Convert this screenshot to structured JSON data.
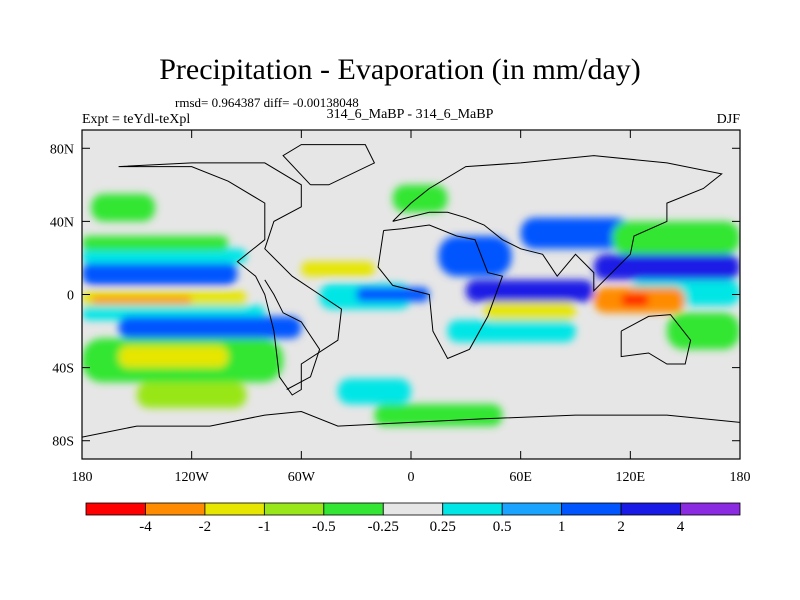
{
  "header": {
    "title": "Precipitation - Evaporation (in mm/day)",
    "stats": "rmsd= 0.964387 diff= -0.00138048",
    "left_string": "Expt = teYdl-teXpl",
    "center_string": "314_6_MaBP - 314_6_MaBP",
    "right_string": "DJF"
  },
  "chart_data": {
    "type": "heatmap",
    "title": "Precipitation - Evaporation (in mm/day)",
    "xlabel": "",
    "ylabel": "",
    "xlim": [
      -180,
      180
    ],
    "ylim": [
      -90,
      90
    ],
    "x_ticks": [
      {
        "value": -180,
        "label": "180"
      },
      {
        "value": -120,
        "label": "120W"
      },
      {
        "value": -60,
        "label": "60W"
      },
      {
        "value": 0,
        "label": "0"
      },
      {
        "value": 60,
        "label": "60E"
      },
      {
        "value": 120,
        "label": "120E"
      },
      {
        "value": 180,
        "label": "180"
      }
    ],
    "y_ticks": [
      {
        "value": 80,
        "label": "80N"
      },
      {
        "value": 40,
        "label": "40N"
      },
      {
        "value": 0,
        "label": "0"
      },
      {
        "value": -40,
        "label": "40S"
      },
      {
        "value": -80,
        "label": "80S"
      }
    ],
    "colorbar": {
      "levels": [
        "-4",
        "-2",
        "-1",
        "-0.5",
        "-0.25",
        "0.25",
        "0.5",
        "1",
        "2",
        "4"
      ],
      "colors": [
        "#ff0000",
        "#ff8c00",
        "#e6e600",
        "#99e619",
        "#33e633",
        "#e6e6e6",
        "#00e6e6",
        "#1aa3ff",
        "#0055ff",
        "#1a1ae6",
        "#8a2be2"
      ]
    },
    "background_color": "#e6e6e6",
    "regions": [
      {
        "name": "north-pacific-band",
        "lon": [
          -180,
          -95
        ],
        "lat": [
          5,
          18
        ],
        "color": "#0055ff"
      },
      {
        "name": "north-pacific-cyan",
        "lon": [
          -180,
          -90
        ],
        "lat": [
          17,
          25
        ],
        "color": "#00e6e6"
      },
      {
        "name": "north-pacific-green",
        "lon": [
          -180,
          -100
        ],
        "lat": [
          24,
          32
        ],
        "color": "#33e633"
      },
      {
        "name": "north-pacific-storm",
        "lon": [
          -175,
          -140
        ],
        "lat": [
          40,
          55
        ],
        "color": "#33e633"
      },
      {
        "name": "equatorial-pacific-yellow",
        "lon": [
          -180,
          -90
        ],
        "lat": [
          -7,
          2
        ],
        "color": "#e6e600"
      },
      {
        "name": "equatorial-pacific-red",
        "lon": [
          -175,
          -120
        ],
        "lat": [
          -5,
          -1
        ],
        "color": "#ff8c00"
      },
      {
        "name": "south-pacific-cyan",
        "lon": [
          -180,
          -80
        ],
        "lat": [
          -14,
          -6
        ],
        "color": "#00e6e6"
      },
      {
        "name": "south-pacific-band",
        "lon": [
          -160,
          -60
        ],
        "lat": [
          -24,
          -12
        ],
        "color": "#0055ff"
      },
      {
        "name": "south-pacific-green",
        "lon": [
          -180,
          -70
        ],
        "lat": [
          -48,
          -24
        ],
        "color": "#33e633"
      },
      {
        "name": "south-pacific-yellow",
        "lon": [
          -160,
          -100
        ],
        "lat": [
          -40,
          -28
        ],
        "color": "#e6e600"
      },
      {
        "name": "southern-ocean-green",
        "lon": [
          -150,
          -90
        ],
        "lat": [
          -62,
          -48
        ],
        "color": "#99e619"
      },
      {
        "name": "south-atlantic-cyan",
        "lon": [
          -40,
          0
        ],
        "lat": [
          -60,
          -46
        ],
        "color": "#00e6e6"
      },
      {
        "name": "south-atlantic-green",
        "lon": [
          -20,
          50
        ],
        "lat": [
          -72,
          -60
        ],
        "color": "#33e633"
      },
      {
        "name": "atlantic-north-yellow",
        "lon": [
          -60,
          -20
        ],
        "lat": [
          10,
          18
        ],
        "color": "#e6e600"
      },
      {
        "name": "atlantic-cyan",
        "lon": [
          -50,
          0
        ],
        "lat": [
          -8,
          6
        ],
        "color": "#00e6e6"
      },
      {
        "name": "atlantic-blue",
        "lon": [
          -30,
          10
        ],
        "lat": [
          -4,
          4
        ],
        "color": "#0055ff"
      },
      {
        "name": "africa-blue",
        "lon": [
          15,
          55
        ],
        "lat": [
          10,
          32
        ],
        "color": "#0055ff"
      },
      {
        "name": "indian-band",
        "lon": [
          30,
          100
        ],
        "lat": [
          -4,
          8
        ],
        "color": "#1a1ae6"
      },
      {
        "name": "indian-yellow",
        "lon": [
          40,
          90
        ],
        "lat": [
          -14,
          -4
        ],
        "color": "#e6e600"
      },
      {
        "name": "indian-cyan",
        "lon": [
          20,
          90
        ],
        "lat": [
          -26,
          -14
        ],
        "color": "#00e6e6"
      },
      {
        "name": "asia-blue",
        "lon": [
          60,
          120
        ],
        "lat": [
          25,
          42
        ],
        "color": "#0055ff"
      },
      {
        "name": "west-pacific-blue",
        "lon": [
          100,
          180
        ],
        "lat": [
          8,
          22
        ],
        "color": "#1a1ae6"
      },
      {
        "name": "west-pacific-green",
        "lon": [
          110,
          180
        ],
        "lat": [
          22,
          40
        ],
        "color": "#33e633"
      },
      {
        "name": "west-pacific-cyan",
        "lon": [
          120,
          180
        ],
        "lat": [
          -6,
          8
        ],
        "color": "#00e6e6"
      },
      {
        "name": "maritime-orange",
        "lon": [
          100,
          150
        ],
        "lat": [
          -10,
          4
        ],
        "color": "#ff8c00"
      },
      {
        "name": "maritime-red",
        "lon": [
          115,
          130
        ],
        "lat": [
          -6,
          0
        ],
        "color": "#ff0000"
      },
      {
        "name": "south-west-pacific-green",
        "lon": [
          140,
          180
        ],
        "lat": [
          -30,
          -10
        ],
        "color": "#33e633"
      },
      {
        "name": "north-africa-green",
        "lon": [
          -10,
          20
        ],
        "lat": [
          45,
          60
        ],
        "color": "#33e633"
      }
    ],
    "coastlines": [
      {
        "name": "americas",
        "points": [
          [
            -160,
            70
          ],
          [
            -120,
            70
          ],
          [
            -100,
            62
          ],
          [
            -80,
            50
          ],
          [
            -80,
            30
          ],
          [
            -95,
            18
          ],
          [
            -85,
            10
          ],
          [
            -80,
            0
          ],
          [
            -75,
            -20
          ],
          [
            -72,
            -45
          ],
          [
            -65,
            -55
          ],
          [
            -60,
            -52
          ],
          [
            -60,
            -38
          ],
          [
            -40,
            -25
          ],
          [
            -38,
            -8
          ],
          [
            -50,
            0
          ],
          [
            -65,
            10
          ],
          [
            -80,
            25
          ],
          [
            -75,
            40
          ],
          [
            -60,
            48
          ],
          [
            -60,
            60
          ],
          [
            -80,
            72
          ],
          [
            -120,
            72
          ],
          [
            -160,
            70
          ]
        ]
      },
      {
        "name": "south-america-interior",
        "points": [
          [
            -80,
            8
          ],
          [
            -75,
            0
          ],
          [
            -70,
            -10
          ],
          [
            -60,
            -15
          ],
          [
            -50,
            -30
          ],
          [
            -55,
            -45
          ],
          [
            -68,
            -52
          ]
        ]
      },
      {
        "name": "africa-europe",
        "points": [
          [
            -15,
            35
          ],
          [
            -18,
            15
          ],
          [
            -10,
            5
          ],
          [
            10,
            0
          ],
          [
            12,
            -20
          ],
          [
            20,
            -35
          ],
          [
            32,
            -30
          ],
          [
            42,
            -12
          ],
          [
            50,
            10
          ],
          [
            42,
            12
          ],
          [
            35,
            30
          ],
          [
            25,
            32
          ],
          [
            10,
            38
          ],
          [
            -5,
            36
          ],
          [
            -15,
            35
          ]
        ]
      },
      {
        "name": "eurasia",
        "points": [
          [
            -10,
            40
          ],
          [
            0,
            50
          ],
          [
            10,
            58
          ],
          [
            30,
            70
          ],
          [
            60,
            72
          ],
          [
            100,
            76
          ],
          [
            140,
            72
          ],
          [
            170,
            66
          ],
          [
            160,
            58
          ],
          [
            140,
            50
          ],
          [
            140,
            40
          ],
          [
            122,
            32
          ],
          [
            120,
            22
          ],
          [
            108,
            10
          ],
          [
            100,
            2
          ],
          [
            100,
            12
          ],
          [
            90,
            22
          ],
          [
            80,
            10
          ],
          [
            72,
            22
          ],
          [
            60,
            25
          ],
          [
            50,
            30
          ],
          [
            40,
            38
          ],
          [
            30,
            42
          ],
          [
            20,
            45
          ],
          [
            10,
            45
          ],
          [
            -10,
            40
          ]
        ]
      },
      {
        "name": "antarctica-coast",
        "points": [
          [
            -180,
            -78
          ],
          [
            -150,
            -72
          ],
          [
            -110,
            -72
          ],
          [
            -80,
            -66
          ],
          [
            -60,
            -64
          ],
          [
            -40,
            -72
          ],
          [
            0,
            -70
          ],
          [
            40,
            -68
          ],
          [
            90,
            -66
          ],
          [
            140,
            -66
          ],
          [
            180,
            -70
          ]
        ]
      },
      {
        "name": "australia",
        "points": [
          [
            115,
            -20
          ],
          [
            130,
            -12
          ],
          [
            142,
            -11
          ],
          [
            153,
            -25
          ],
          [
            150,
            -38
          ],
          [
            140,
            -38
          ],
          [
            130,
            -32
          ],
          [
            115,
            -34
          ],
          [
            115,
            -20
          ]
        ]
      },
      {
        "name": "greenland",
        "points": [
          [
            -55,
            60
          ],
          [
            -45,
            60
          ],
          [
            -20,
            72
          ],
          [
            -25,
            82
          ],
          [
            -60,
            82
          ],
          [
            -70,
            76
          ],
          [
            -55,
            60
          ]
        ]
      }
    ]
  }
}
